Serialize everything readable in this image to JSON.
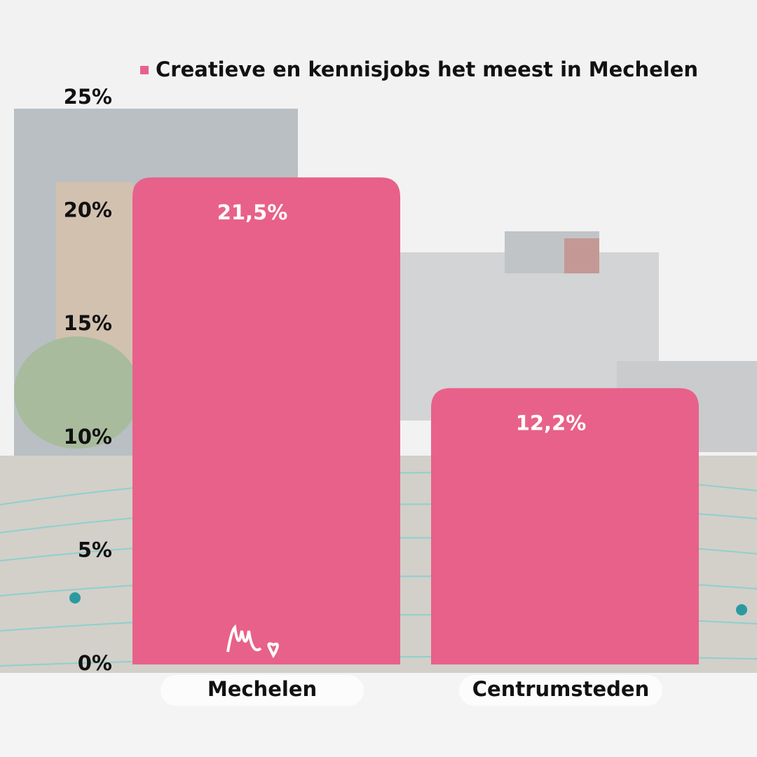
{
  "chart_data": {
    "type": "bar",
    "categories": [
      "Mechelen",
      "Centrumsteden"
    ],
    "series": [
      {
        "name": "Creatieve en kennisjobs het meest in Mechelen",
        "color": "#e8618a",
        "values": [
          21.5,
          12.2
        ],
        "value_labels": [
          "21,5%",
          "12,2%"
        ]
      }
    ],
    "ylim": [
      0,
      25
    ],
    "yticks": [
      {
        "value": 0,
        "label": "0%"
      },
      {
        "value": 5,
        "label": "5%"
      },
      {
        "value": 10,
        "label": "10%"
      },
      {
        "value": 15,
        "label": "15%"
      },
      {
        "value": 20,
        "label": "20%"
      },
      {
        "value": 25,
        "label": "25%"
      }
    ],
    "legend": "top"
  }
}
